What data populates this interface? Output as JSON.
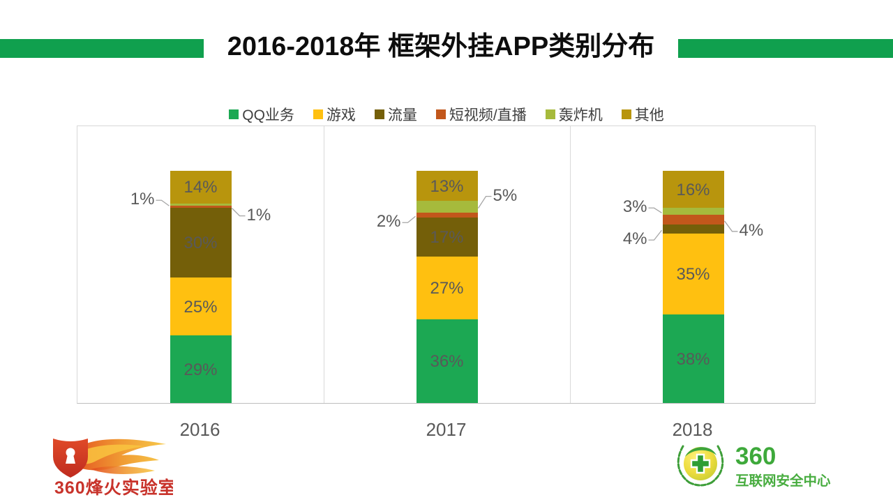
{
  "title": {
    "text": "2016-2018年 框架外挂APP类别分布"
  },
  "header": {
    "accent_color": "#10A04E"
  },
  "chart_data": {
    "type": "bar",
    "subtype": "stacked-percent",
    "title": "2016-2018年 框架外挂APP类别分布",
    "categories": [
      "2016",
      "2017",
      "2018"
    ],
    "series": [
      {
        "name": "QQ业务",
        "color": "#1CA853",
        "values": [
          29,
          36,
          38
        ]
      },
      {
        "name": "游戏",
        "color": "#FFC010",
        "values": [
          25,
          27,
          35
        ]
      },
      {
        "name": "流量",
        "color": "#745F09",
        "values": [
          30,
          17,
          4
        ]
      },
      {
        "name": "短视频/直播",
        "color": "#C2571B",
        "values": [
          1,
          2,
          4
        ]
      },
      {
        "name": "轰炸机",
        "color": "#A6BA3C",
        "values": [
          1,
          5,
          3
        ]
      },
      {
        "name": "其他",
        "color": "#B8950D",
        "values": [
          14,
          13,
          16
        ]
      }
    ],
    "value_suffix": "%",
    "inside_label_min": 13,
    "label_color": "#595959",
    "leader_color": "#A6A6A6",
    "legend_position": "top",
    "gridlines": false,
    "ylim": [
      0,
      120
    ],
    "callouts": [
      {
        "category_index": 0,
        "series_index": 4,
        "side": "left",
        "dy": -8
      },
      {
        "category_index": 0,
        "series_index": 3,
        "side": "right",
        "dy": 11
      },
      {
        "category_index": 1,
        "series_index": 3,
        "side": "left",
        "dy": 9
      },
      {
        "category_index": 1,
        "series_index": 4,
        "side": "right",
        "dy": -17
      },
      {
        "category_index": 2,
        "series_index": 2,
        "side": "left",
        "dy": 14
      },
      {
        "category_index": 2,
        "series_index": 3,
        "side": "right",
        "dy": 15
      },
      {
        "category_index": 2,
        "series_index": 4,
        "side": "left",
        "dy": -7
      }
    ]
  },
  "footer": {
    "left_logo_text": "360烽火实验室",
    "right_logo_line1": "360",
    "right_logo_line2": "互联网安全中心"
  }
}
